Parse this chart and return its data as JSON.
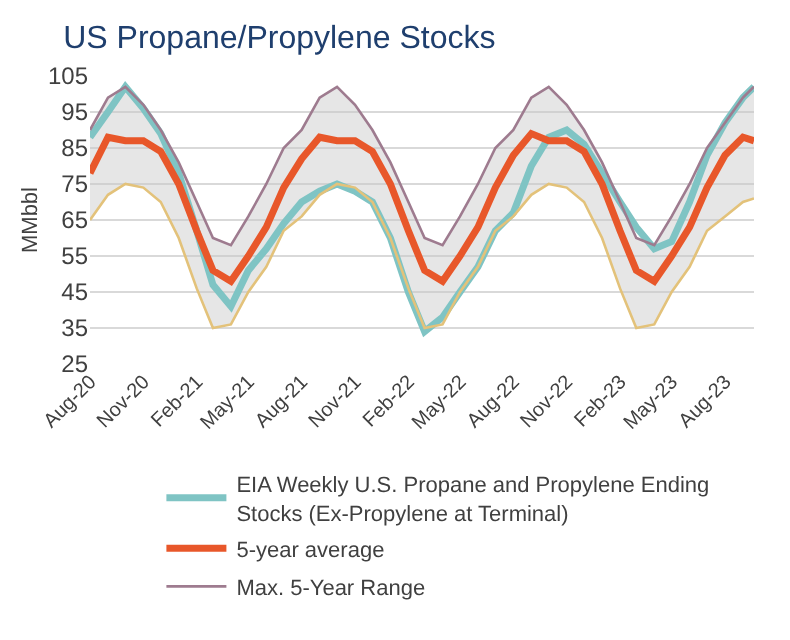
{
  "chart_data": {
    "type": "line",
    "title": "US Propane/Propylene Stocks",
    "ylabel": "MMbbl",
    "x": [
      "2020-08-01",
      "2020-09-01",
      "2020-10-01",
      "2020-11-01",
      "2020-12-01",
      "2021-01-01",
      "2021-02-01",
      "2021-03-01",
      "2021-04-01",
      "2021-05-01",
      "2021-06-01",
      "2021-07-01",
      "2021-08-01",
      "2021-09-01",
      "2021-10-01",
      "2021-11-01",
      "2021-12-01",
      "2022-01-01",
      "2022-02-01",
      "2022-03-01",
      "2022-04-01",
      "2022-05-01",
      "2022-06-01",
      "2022-07-01",
      "2022-08-01",
      "2022-09-01",
      "2022-10-01",
      "2022-11-01",
      "2022-12-01",
      "2023-01-01",
      "2023-02-01",
      "2023-03-01",
      "2023-04-01",
      "2023-05-01",
      "2023-06-01",
      "2023-07-01",
      "2023-08-01",
      "2023-09-01",
      "2023-09-20"
    ],
    "series": [
      {
        "name": "EIA Weekly U.S. Propane and Propylene Ending Stocks (Ex-Propylene at Terminal)",
        "color": "#7fc4c4",
        "values": [
          88,
          95,
          102,
          96,
          89,
          78,
          62,
          47,
          41,
          51,
          57,
          64,
          70,
          73,
          75,
          73,
          70,
          60,
          45,
          34,
          38,
          45,
          52,
          62,
          67,
          80,
          88,
          90,
          86,
          78,
          70,
          63,
          57,
          59,
          70,
          83,
          92,
          99,
          102
        ]
      },
      {
        "name": "5-year average",
        "color": "#e8572a",
        "values": [
          78,
          88,
          87,
          87,
          84,
          75,
          62,
          51,
          48,
          55,
          63,
          74,
          82,
          88,
          87,
          87,
          84,
          75,
          62,
          51,
          48,
          55,
          63,
          74,
          83,
          89,
          87,
          87,
          84,
          75,
          62,
          51,
          48,
          55,
          63,
          74,
          83,
          88,
          87
        ],
        "lower": [
          65,
          72,
          75,
          74,
          70,
          60,
          46,
          35,
          36,
          45,
          52,
          62,
          66,
          72,
          75,
          74,
          70,
          60,
          46,
          35,
          36,
          45,
          52,
          62,
          66,
          72,
          75,
          74,
          70,
          60,
          46,
          35,
          36,
          45,
          52,
          62,
          66,
          70,
          71
        ],
        "upper": [
          90,
          99,
          102,
          97,
          90,
          81,
          70,
          60,
          58,
          66,
          75,
          85,
          90,
          99,
          102,
          97,
          90,
          81,
          70,
          60,
          58,
          66,
          75,
          85,
          90,
          99,
          102,
          97,
          90,
          81,
          70,
          60,
          58,
          66,
          75,
          85,
          92,
          99,
          102
        ]
      },
      {
        "name": "Max. 5-Year Range",
        "color": "#9e7b8f",
        "values": [
          90,
          99,
          102,
          97,
          90,
          81,
          70,
          60,
          58,
          66,
          75,
          85,
          90,
          99,
          102,
          97,
          90,
          81,
          70,
          60,
          58,
          66,
          75,
          85,
          90,
          99,
          102,
          97,
          90,
          81,
          70,
          60,
          58,
          66,
          75,
          85,
          92,
          99,
          102
        ]
      },
      {
        "color": "#e3c27a",
        "values": [
          65,
          72,
          75,
          74,
          70,
          60,
          46,
          35,
          36,
          45,
          52,
          62,
          66,
          72,
          75,
          74,
          70,
          60,
          46,
          35,
          36,
          45,
          52,
          62,
          66,
          72,
          75,
          74,
          70,
          60,
          46,
          35,
          36,
          45,
          52,
          62,
          66,
          70,
          71
        ]
      }
    ],
    "xlim": [
      "2020-08-01",
      "2023-09-20"
    ],
    "xticks": [
      {
        "value": "2020-08-01",
        "label": "Aug-20"
      },
      {
        "value": "2020-11-01",
        "label": "Nov-20"
      },
      {
        "value": "2021-02-01",
        "label": "Feb-21"
      },
      {
        "value": "2021-05-01",
        "label": "May-21"
      },
      {
        "value": "2021-08-01",
        "label": "Aug-21"
      },
      {
        "value": "2021-11-01",
        "label": "Nov-21"
      },
      {
        "value": "2022-02-01",
        "label": "Feb-22"
      },
      {
        "value": "2022-05-01",
        "label": "May-22"
      },
      {
        "value": "2022-08-01",
        "label": "Aug-22"
      },
      {
        "value": "2022-11-01",
        "label": "Nov-22"
      },
      {
        "value": "2023-02-01",
        "label": "Feb-23"
      },
      {
        "value": "2023-05-01",
        "label": "May-23"
      },
      {
        "value": "2023-08-01",
        "label": "Aug-23"
      }
    ],
    "ylim": [
      25,
      105
    ],
    "yticks": [
      25,
      35,
      45,
      55,
      65,
      75,
      85,
      95,
      105
    ],
    "grid": "y",
    "legend": "bottom",
    "marker": "none",
    "line_style": "solid"
  }
}
